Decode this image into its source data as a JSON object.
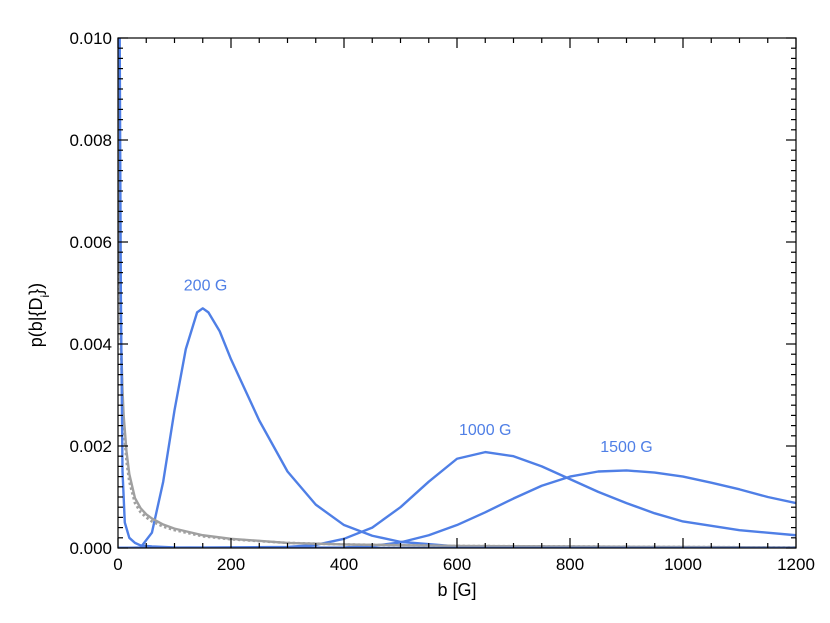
{
  "chart_data": {
    "type": "line",
    "title": "",
    "xlabel": "b [G]",
    "ylabel": "p(b|{D_i})",
    "xlim": [
      0,
      1200
    ],
    "ylim": [
      0,
      0.01
    ],
    "x_ticks": [
      0,
      200,
      400,
      600,
      800,
      1000,
      1200
    ],
    "x_tick_labels": [
      "0",
      "200",
      "400",
      "600",
      "800",
      "1000",
      "1200"
    ],
    "y_ticks": [
      0,
      0.002,
      0.004,
      0.006,
      0.008,
      0.01
    ],
    "y_tick_labels": [
      "0.000",
      "0.002",
      "0.004",
      "0.006",
      "0.008",
      "0.010"
    ],
    "grid": false,
    "legend": "none",
    "colors": {
      "blue": "#4f7fe6",
      "gray": "#a0a0a0"
    },
    "series": [
      {
        "style": "solid",
        "color": "#4f7fe6",
        "x": [
          0,
          40,
          60,
          80,
          100,
          120,
          140,
          150,
          160,
          180,
          200,
          250,
          300,
          350,
          400,
          450,
          500,
          600,
          700,
          800,
          1000,
          1200
        ],
        "y": [
          0,
          1e-05,
          0.0003,
          0.0013,
          0.0027,
          0.0039,
          0.00462,
          0.0047,
          0.00462,
          0.00425,
          0.0037,
          0.0025,
          0.0015,
          0.00085,
          0.00045,
          0.00024,
          0.00012,
          3e-05,
          1e-05,
          0,
          0,
          0
        ]
      },
      {
        "style": "solid",
        "color": "#4f7fe6",
        "x": [
          0,
          300,
          350,
          400,
          450,
          500,
          550,
          600,
          650,
          700,
          750,
          800,
          850,
          900,
          950,
          1000,
          1100,
          1200
        ],
        "y": [
          0,
          2e-05,
          6e-05,
          0.00018,
          0.0004,
          0.0008,
          0.0013,
          0.00175,
          0.00188,
          0.0018,
          0.0016,
          0.00135,
          0.0011,
          0.00088,
          0.00068,
          0.00052,
          0.00035,
          0.00025
        ]
      },
      {
        "style": "solid",
        "color": "#4f7fe6",
        "x": [
          0,
          400,
          450,
          500,
          550,
          600,
          650,
          700,
          750,
          800,
          850,
          900,
          950,
          1000,
          1050,
          1100,
          1150,
          1200
        ],
        "y": [
          0,
          1e-05,
          4e-05,
          0.00011,
          0.00025,
          0.00045,
          0.0007,
          0.00097,
          0.00122,
          0.0014,
          0.0015,
          0.00152,
          0.00148,
          0.0014,
          0.00128,
          0.00115,
          0.001,
          0.00088
        ]
      },
      {
        "style": "solid",
        "color": "#a0a0a0",
        "x": [
          0.8,
          1,
          1.5,
          2,
          3,
          5,
          8,
          10,
          15,
          20,
          30,
          40,
          50,
          60,
          80,
          100,
          150,
          200,
          300,
          400,
          600,
          800,
          1000,
          1200
        ],
        "y": [
          0.0101,
          0.0092,
          0.0078,
          0.0068,
          0.0056,
          0.0042,
          0.0031,
          0.0026,
          0.0019,
          0.00145,
          0.00098,
          0.00078,
          0.00066,
          0.00058,
          0.00046,
          0.00038,
          0.00025,
          0.00018,
          0.0001,
          7e-05,
          4e-05,
          3e-05,
          2e-05,
          1e-05
        ]
      },
      {
        "style": "dotted",
        "color": "#a0a0a0",
        "x": [
          0.8,
          1,
          1.5,
          2,
          3,
          5,
          8,
          10,
          15,
          20,
          30,
          40,
          50,
          60,
          80,
          100,
          150,
          200,
          300,
          400,
          600,
          800,
          1000,
          1200
        ],
        "y": [
          0.0101,
          0.0092,
          0.0078,
          0.0068,
          0.0055,
          0.004,
          0.0029,
          0.0024,
          0.0017,
          0.0013,
          0.00088,
          0.0007,
          0.0006,
          0.00052,
          0.00042,
          0.00035,
          0.00023,
          0.00017,
          0.0001,
          7e-05,
          4e-05,
          3e-05,
          2e-05,
          1e-05
        ]
      },
      {
        "style": "solid",
        "color": "#4f7fe6",
        "x": [
          0,
          0.5,
          1,
          2,
          3,
          5,
          8,
          12,
          20,
          30,
          40,
          60,
          100,
          200,
          400,
          800,
          1200
        ],
        "y": [
          0.0101,
          0.0101,
          0.0101,
          0.0101,
          0.0101,
          0.005,
          0.0015,
          0.0005,
          0.0002,
          0.0001,
          5e-05,
          3e-05,
          1e-05,
          0,
          0,
          0,
          0
        ]
      }
    ],
    "annotations": [
      {
        "text": "200 G",
        "x": 155,
        "y": 0.00505,
        "color": "#4f7fe6"
      },
      {
        "text": "1000 G",
        "x": 650,
        "y": 0.00222,
        "color": "#4f7fe6"
      },
      {
        "text": "1500 G",
        "x": 900,
        "y": 0.00188,
        "color": "#4f7fe6"
      }
    ]
  }
}
